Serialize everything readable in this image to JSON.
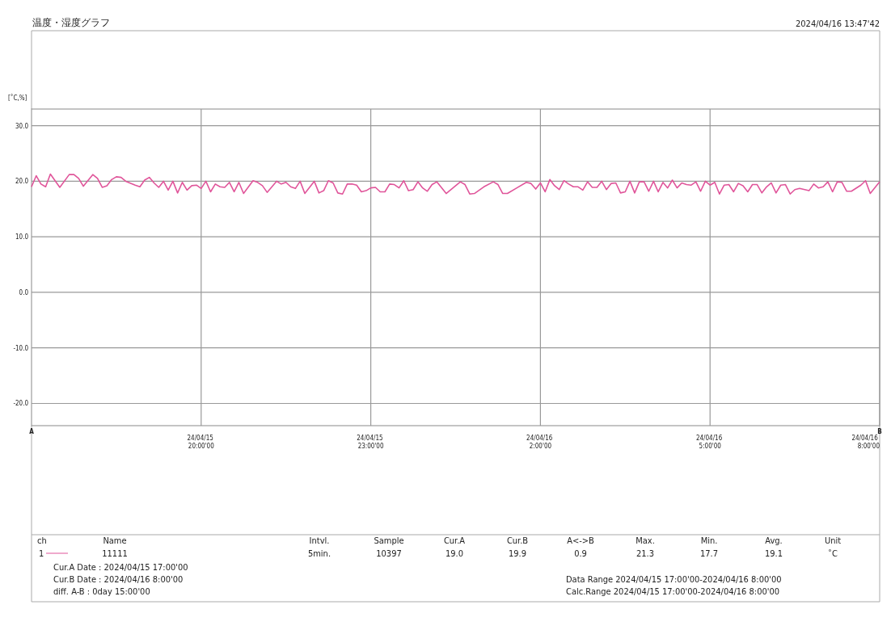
{
  "chart_data": {
    "type": "line",
    "title": "温度・湿度グラフ",
    "ylabel": "[˚C,%]",
    "legend_title": "Name",
    "legend": "bottom",
    "grid": true,
    "xlim": [
      "2024-04-15T17:00",
      "2024-04-16T08:00"
    ],
    "ylim": [
      -24,
      33
    ],
    "xticks": [
      {
        "value": "2024-04-15T20:00",
        "label": "24/04/15 20:00'00"
      },
      {
        "value": "2024-04-15T23:00",
        "label": "24/04/15 23:00'00"
      },
      {
        "value": "2024-04-16T02:00",
        "label": "24/04/16 2:00'00"
      },
      {
        "value": "2024-04-16T05:00",
        "label": "24/04/16 5:00'00"
      },
      {
        "value": "2024-04-16T08:00",
        "label": "24/04/16 8:00'00"
      }
    ],
    "yticks": [
      {
        "value": 30,
        "label": "30.0"
      },
      {
        "value": 20,
        "label": "20.0"
      },
      {
        "value": 10,
        "label": "10.0"
      },
      {
        "value": 0,
        "label": "0.0"
      },
      {
        "value": -10,
        "label": "-10.0"
      },
      {
        "value": -20,
        "label": "-20.0"
      }
    ],
    "annotations": [
      "2024/04/16 13:47'42",
      "ch",
      "Intvl.",
      "Sample",
      "Cur.A",
      "Cur.B",
      "A<->B",
      "Max.",
      "Min.",
      "Avg.",
      "Unit",
      "1",
      "5min.",
      "10397",
      "19.0",
      "19.9",
      "0.9",
      "21.3",
      "17.7",
      "19.1",
      "˚C",
      "Cur.A Date : 2024/04/15 17:00'00",
      "Cur.B Date : 2024/04/16  8:00'00",
      "diff. A-B  : 0day 15:00'00",
      "Data Range 2024/04/15 17:00'00-2024/04/16  8:00'00",
      "Calc.Range 2024/04/15 17:00'00-2024/04/16  8:00'00",
      "A",
      "B"
    ],
    "series": [
      {
        "name": "11111",
        "color": "#e0559a",
        "x": [
          "2024-04-15T17:00",
          "2024-04-15T17:05",
          "2024-04-15T17:10",
          "2024-04-15T17:15",
          "2024-04-15T17:20",
          "2024-04-15T17:30",
          "2024-04-15T17:40",
          "2024-04-15T17:45",
          "2024-04-15T17:50",
          "2024-04-15T17:55",
          "2024-04-15T18:05",
          "2024-04-15T18:10",
          "2024-04-15T18:15",
          "2024-04-15T18:20",
          "2024-04-15T18:25",
          "2024-04-15T18:30",
          "2024-04-15T18:35",
          "2024-04-15T18:40",
          "2024-04-15T18:50",
          "2024-04-15T18:55",
          "2024-04-15T19:00",
          "2024-04-15T19:05",
          "2024-04-15T19:10",
          "2024-04-15T19:15",
          "2024-04-15T19:20",
          "2024-04-15T19:25",
          "2024-04-15T19:30",
          "2024-04-15T19:35",
          "2024-04-15T19:40",
          "2024-04-15T19:45",
          "2024-04-15T19:50",
          "2024-04-15T19:55",
          "2024-04-15T20:00",
          "2024-04-15T20:05",
          "2024-04-15T20:10",
          "2024-04-15T20:15",
          "2024-04-15T20:20",
          "2024-04-15T20:25",
          "2024-04-15T20:30",
          "2024-04-15T20:35",
          "2024-04-15T20:40",
          "2024-04-15T20:45",
          "2024-04-15T20:55",
          "2024-04-15T21:00",
          "2024-04-15T21:05",
          "2024-04-15T21:10",
          "2024-04-15T21:20",
          "2024-04-15T21:25",
          "2024-04-15T21:30",
          "2024-04-15T21:35",
          "2024-04-15T21:40",
          "2024-04-15T21:45",
          "2024-04-15T21:50",
          "2024-04-15T22:00",
          "2024-04-15T22:05",
          "2024-04-15T22:10",
          "2024-04-15T22:15",
          "2024-04-15T22:20",
          "2024-04-15T22:25",
          "2024-04-15T22:30",
          "2024-04-15T22:35",
          "2024-04-15T22:40",
          "2024-04-15T22:45",
          "2024-04-15T22:50",
          "2024-04-15T22:55",
          "2024-04-15T23:00",
          "2024-04-15T23:05",
          "2024-04-15T23:10",
          "2024-04-15T23:15",
          "2024-04-15T23:20",
          "2024-04-15T23:25",
          "2024-04-15T23:30",
          "2024-04-15T23:35",
          "2024-04-15T23:40",
          "2024-04-15T23:45",
          "2024-04-15T23:50",
          "2024-04-15T23:55",
          "2024-04-16T00:00",
          "2024-04-16T00:05",
          "2024-04-16T00:10",
          "2024-04-16T00:20",
          "2024-04-16T00:35",
          "2024-04-16T00:40",
          "2024-04-16T00:45",
          "2024-04-16T00:50",
          "2024-04-16T01:00",
          "2024-04-16T01:10",
          "2024-04-16T01:15",
          "2024-04-16T01:20",
          "2024-04-16T01:25",
          "2024-04-16T01:35",
          "2024-04-16T01:45",
          "2024-04-16T01:50",
          "2024-04-16T01:55",
          "2024-04-16T02:00",
          "2024-04-16T02:05",
          "2024-04-16T02:10",
          "2024-04-16T02:15",
          "2024-04-16T02:20",
          "2024-04-16T02:25",
          "2024-04-16T02:30",
          "2024-04-16T02:35",
          "2024-04-16T02:40",
          "2024-04-16T02:45",
          "2024-04-16T02:50",
          "2024-04-16T02:55",
          "2024-04-16T03:00",
          "2024-04-16T03:05",
          "2024-04-16T03:10",
          "2024-04-16T03:15",
          "2024-04-16T03:20",
          "2024-04-16T03:25",
          "2024-04-16T03:30",
          "2024-04-16T03:35",
          "2024-04-16T03:40",
          "2024-04-16T03:45",
          "2024-04-16T03:50",
          "2024-04-16T03:55",
          "2024-04-16T04:00",
          "2024-04-16T04:05",
          "2024-04-16T04:10",
          "2024-04-16T04:15",
          "2024-04-16T04:20",
          "2024-04-16T04:25",
          "2024-04-16T04:30",
          "2024-04-16T04:35",
          "2024-04-16T04:40",
          "2024-04-16T04:45",
          "2024-04-16T04:50",
          "2024-04-16T04:55",
          "2024-04-16T05:00",
          "2024-04-16T05:05",
          "2024-04-16T05:10",
          "2024-04-16T05:15",
          "2024-04-16T05:20",
          "2024-04-16T05:25",
          "2024-04-16T05:30",
          "2024-04-16T05:35",
          "2024-04-16T05:40",
          "2024-04-16T05:45",
          "2024-04-16T05:50",
          "2024-04-16T05:55",
          "2024-04-16T06:00",
          "2024-04-16T06:05",
          "2024-04-16T06:10",
          "2024-04-16T06:15",
          "2024-04-16T06:20",
          "2024-04-16T06:25",
          "2024-04-16T06:30",
          "2024-04-16T06:35",
          "2024-04-16T06:45",
          "2024-04-16T06:50",
          "2024-04-16T06:55",
          "2024-04-16T07:00",
          "2024-04-16T07:05",
          "2024-04-16T07:10",
          "2024-04-16T07:15",
          "2024-04-16T07:20",
          "2024-04-16T07:25",
          "2024-04-16T07:30",
          "2024-04-16T07:40",
          "2024-04-16T07:45",
          "2024-04-16T07:50",
          "2024-04-16T08:00"
        ],
        "values": [
          19.0,
          21.0,
          19.5,
          19.0,
          21.3,
          18.9,
          21.2,
          21.2,
          20.5,
          19.1,
          21.2,
          20.5,
          18.9,
          19.2,
          20.3,
          20.8,
          20.7,
          20.0,
          19.3,
          19.0,
          20.2,
          20.7,
          19.7,
          18.9,
          20.0,
          18.4,
          20.0,
          17.9,
          19.8,
          18.4,
          19.2,
          19.3,
          18.7,
          20.0,
          18.1,
          19.5,
          19.0,
          18.9,
          19.8,
          18.1,
          19.8,
          17.8,
          20.1,
          19.8,
          19.2,
          18.0,
          20.0,
          19.5,
          19.8,
          19.0,
          18.7,
          20.0,
          17.8,
          20.0,
          17.9,
          18.3,
          20.1,
          19.7,
          17.9,
          17.7,
          19.5,
          19.5,
          19.3,
          18.1,
          18.3,
          18.8,
          18.9,
          18.1,
          18.1,
          19.5,
          19.4,
          18.8,
          20.1,
          18.3,
          18.5,
          19.9,
          18.8,
          18.2,
          19.4,
          19.9,
          17.8,
          19.9,
          19.4,
          17.7,
          17.8,
          19.0,
          19.9,
          19.4,
          17.8,
          17.8,
          18.8,
          19.8,
          19.6,
          18.6,
          19.7,
          18.1,
          20.3,
          19.2,
          18.5,
          20.1,
          19.5,
          19.0,
          19.0,
          18.4,
          19.9,
          18.9,
          18.9,
          20.0,
          18.5,
          19.6,
          19.7,
          17.9,
          18.1,
          20.0,
          17.9,
          19.9,
          19.9,
          18.2,
          20.0,
          18.1,
          19.8,
          18.8,
          20.2,
          18.8,
          19.7,
          19.4,
          19.3,
          19.9,
          18.2,
          20.0,
          19.3,
          19.8,
          17.7,
          19.3,
          19.4,
          18.1,
          19.6,
          19.2,
          18.1,
          19.4,
          19.4,
          17.9,
          19.0,
          19.7,
          17.9,
          19.3,
          19.4,
          17.7,
          18.5,
          18.7,
          18.3,
          19.5,
          18.8,
          19.0,
          19.9,
          18.1,
          19.9,
          19.8,
          18.2,
          18.2,
          19.3,
          20.1,
          17.8,
          19.9
        ]
      }
    ]
  }
}
